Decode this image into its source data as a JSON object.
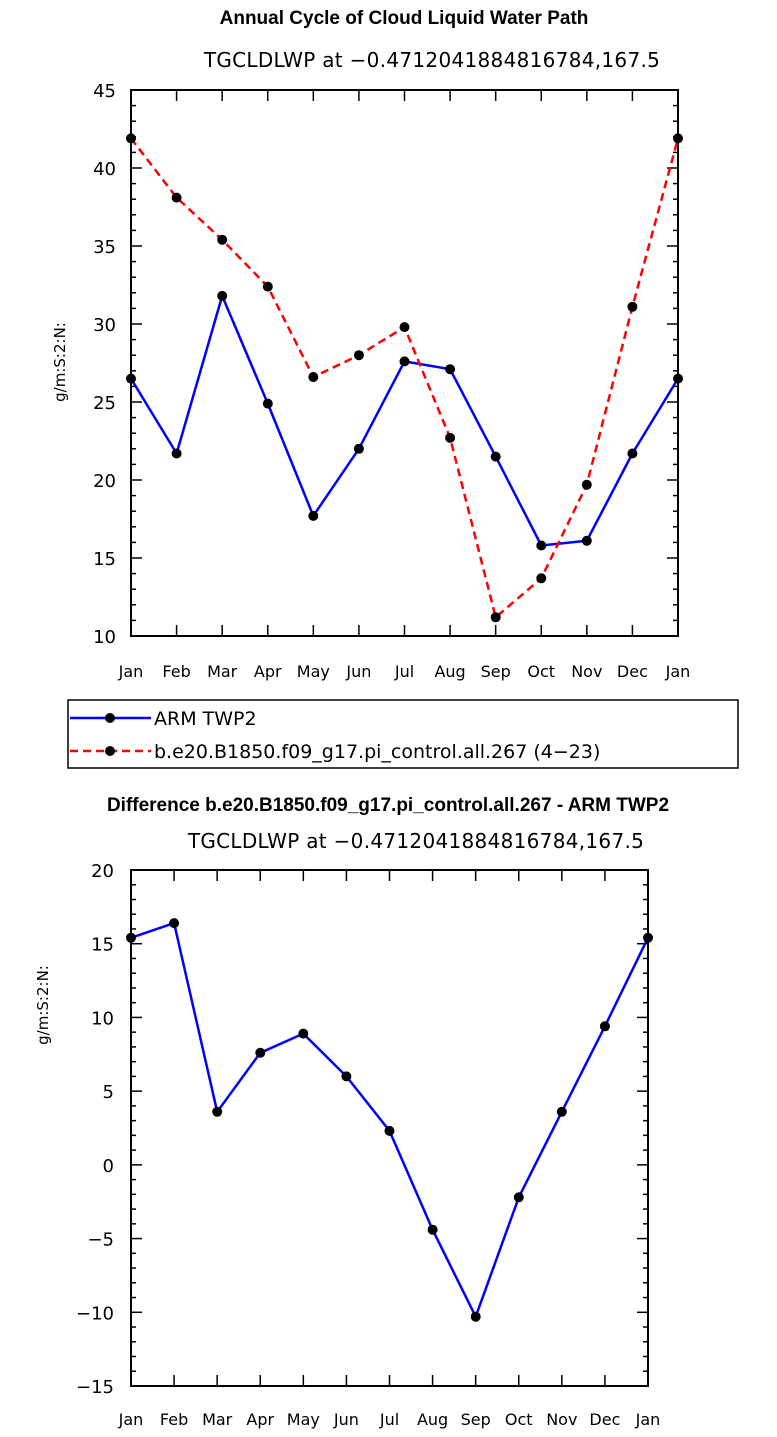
{
  "chart_data": [
    {
      "type": "line",
      "title": "Annual Cycle of Cloud Liquid Water Path",
      "subtitle": "TGCLDLWP at −0.4712041884816784,167.5",
      "xlabel": "",
      "ylabel": "g/m:S:2:N:",
      "categories": [
        "Jan",
        "Feb",
        "Mar",
        "Apr",
        "May",
        "Jun",
        "Jul",
        "Aug",
        "Sep",
        "Oct",
        "Nov",
        "Dec",
        "Jan"
      ],
      "ylim": [
        10,
        45
      ],
      "yticks": [
        10,
        15,
        20,
        25,
        30,
        35,
        40,
        45
      ],
      "series": [
        {
          "name": "ARM TWP2",
          "color": "#0000ff",
          "dash": "solid",
          "values": [
            26.5,
            21.7,
            31.8,
            24.9,
            17.7,
            22.0,
            27.6,
            27.1,
            21.5,
            15.8,
            16.1,
            21.7,
            26.5
          ]
        },
        {
          "name": "b.e20.B1850.f09_g17.pi_control.all.267 (4−23)",
          "color": "#ff0000",
          "dash": "dashed",
          "values": [
            41.9,
            38.1,
            35.4,
            32.4,
            26.6,
            28.0,
            29.8,
            22.7,
            11.2,
            13.7,
            19.7,
            31.1,
            41.9
          ]
        }
      ],
      "legend": [
        "ARM TWP2",
        "b.e20.B1850.f09_g17.pi_control.all.267 (4−23)"
      ],
      "legend_position": "below"
    },
    {
      "type": "line",
      "title": "Difference b.e20.B1850.f09_g17.pi_control.all.267 - ARM TWP2",
      "subtitle": "TGCLDLWP at −0.4712041884816784,167.5",
      "xlabel": "",
      "ylabel": "g/m:S:2:N:",
      "categories": [
        "Jan",
        "Feb",
        "Mar",
        "Apr",
        "May",
        "Jun",
        "Jul",
        "Aug",
        "Sep",
        "Oct",
        "Nov",
        "Dec",
        "Jan"
      ],
      "ylim": [
        -15,
        20
      ],
      "yticks": [
        -15,
        -10,
        -5,
        0,
        5,
        10,
        15,
        20
      ],
      "ytick_labels": [
        "−15",
        "−10",
        "−5",
        "0",
        "5",
        "10",
        "15",
        "20"
      ],
      "series": [
        {
          "name": "Difference",
          "color": "#0000ff",
          "dash": "solid",
          "values": [
            15.4,
            16.4,
            3.6,
            7.6,
            8.9,
            6.0,
            2.3,
            -4.4,
            -10.3,
            -2.2,
            3.6,
            9.4,
            15.4
          ]
        }
      ]
    }
  ]
}
